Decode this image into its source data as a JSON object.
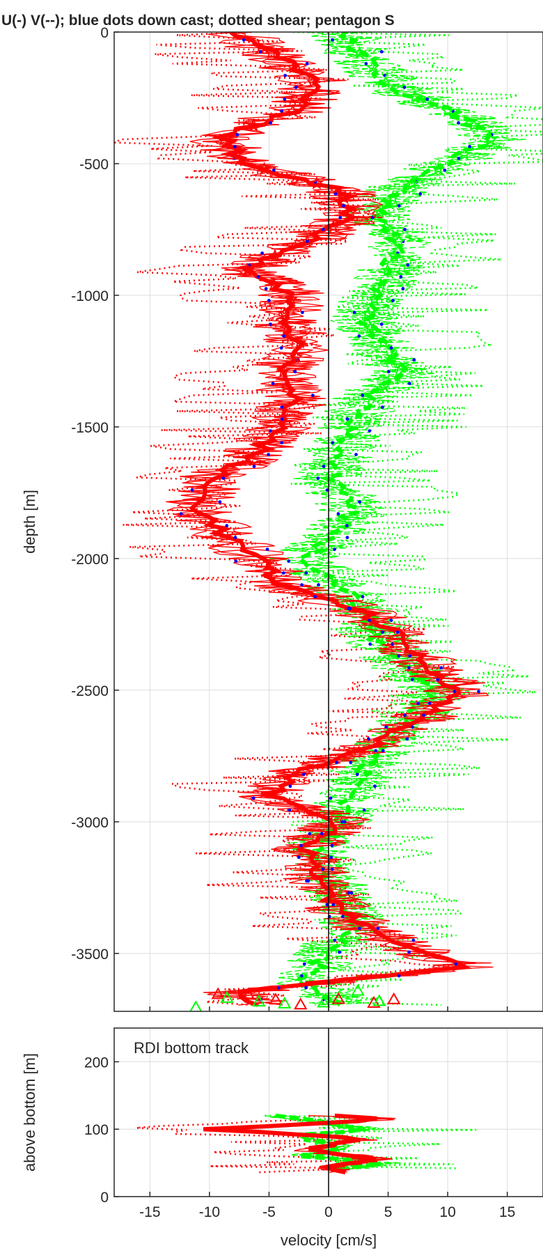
{
  "title": "U(-) V(--); blue dots down cast; dotted shear; pentagon S",
  "colors": {
    "u": "#ff0000",
    "v": "#00ff00",
    "dots": "#0000ff",
    "axis": "#262626",
    "grid": "#dcdcdc"
  },
  "chart_data": [
    {
      "type": "line",
      "panel": "upper",
      "xlabel": "",
      "ylabel": "depth [m]",
      "xlim": [
        -18,
        18
      ],
      "ylim": [
        -3720,
        0
      ],
      "yticks": [
        0,
        -500,
        -1000,
        -1500,
        -2000,
        -2500,
        -3000,
        -3500
      ],
      "ytick_labels": [
        "0",
        "-500",
        "-1000",
        "-1500",
        "-2000",
        "-2500",
        "-3000",
        "-3500"
      ],
      "xticks": [
        -15,
        -10,
        -5,
        0,
        5,
        10,
        15
      ],
      "grid": true,
      "series_style": {
        "u": {
          "color": "red",
          "style": "solid"
        },
        "v": {
          "color": "green",
          "style": "dashed"
        },
        "down_cast_dots": {
          "color": "blue",
          "marker": "dot"
        },
        "shear": {
          "style": "dotted"
        },
        "pentagon_markers": {
          "marker": "pentagram"
        }
      },
      "u_profile": [
        {
          "depth": 0,
          "value": -8
        },
        {
          "depth": -100,
          "value": -4
        },
        {
          "depth": -200,
          "value": -1
        },
        {
          "depth": -300,
          "value": -3
        },
        {
          "depth": -400,
          "value": -9
        },
        {
          "depth": -500,
          "value": -7
        },
        {
          "depth": -600,
          "value": 1
        },
        {
          "depth": -700,
          "value": 2
        },
        {
          "depth": -800,
          "value": -2
        },
        {
          "depth": -900,
          "value": -7
        },
        {
          "depth": -1000,
          "value": -3
        },
        {
          "depth": -1100,
          "value": -4
        },
        {
          "depth": -1200,
          "value": -2
        },
        {
          "depth": -1300,
          "value": -4
        },
        {
          "depth": -1400,
          "value": -3
        },
        {
          "depth": -1500,
          "value": -4
        },
        {
          "depth": -1600,
          "value": -6
        },
        {
          "depth": -1700,
          "value": -10
        },
        {
          "depth": -1800,
          "value": -11
        },
        {
          "depth": -1900,
          "value": -9
        },
        {
          "depth": -2000,
          "value": -6
        },
        {
          "depth": -2100,
          "value": -4
        },
        {
          "depth": -2200,
          "value": 3
        },
        {
          "depth": -2300,
          "value": 6
        },
        {
          "depth": -2400,
          "value": 8
        },
        {
          "depth": -2500,
          "value": 11
        },
        {
          "depth": -2600,
          "value": 8
        },
        {
          "depth": -2700,
          "value": 4
        },
        {
          "depth": -2800,
          "value": -2
        },
        {
          "depth": -2900,
          "value": -5
        },
        {
          "depth": -3000,
          "value": 1
        },
        {
          "depth": -3100,
          "value": -2
        },
        {
          "depth": -3200,
          "value": -1
        },
        {
          "depth": -3300,
          "value": 0
        },
        {
          "depth": -3400,
          "value": 3
        },
        {
          "depth": -3500,
          "value": 8
        },
        {
          "depth": -3550,
          "value": 12
        },
        {
          "depth": -3600,
          "value": 2
        },
        {
          "depth": -3650,
          "value": -8
        },
        {
          "depth": -3700,
          "value": -5
        }
      ],
      "v_profile": [
        {
          "depth": 0,
          "value": 1
        },
        {
          "depth": -100,
          "value": 3
        },
        {
          "depth": -200,
          "value": 5
        },
        {
          "depth": -300,
          "value": 10
        },
        {
          "depth": -400,
          "value": 14
        },
        {
          "depth": -500,
          "value": 10
        },
        {
          "depth": -600,
          "value": 6
        },
        {
          "depth": -700,
          "value": 4
        },
        {
          "depth": -800,
          "value": 6
        },
        {
          "depth": -900,
          "value": 5
        },
        {
          "depth": -1000,
          "value": 4
        },
        {
          "depth": -1100,
          "value": 3
        },
        {
          "depth": -1200,
          "value": 5
        },
        {
          "depth": -1300,
          "value": 6
        },
        {
          "depth": -1400,
          "value": 3
        },
        {
          "depth": -1500,
          "value": 2
        },
        {
          "depth": -1600,
          "value": 1
        },
        {
          "depth": -1700,
          "value": 0
        },
        {
          "depth": -1800,
          "value": 2
        },
        {
          "depth": -1900,
          "value": 1
        },
        {
          "depth": -2000,
          "value": -2
        },
        {
          "depth": -2100,
          "value": 1
        },
        {
          "depth": -2200,
          "value": 3
        },
        {
          "depth": -2300,
          "value": 4
        },
        {
          "depth": -2400,
          "value": 6
        },
        {
          "depth": -2500,
          "value": 9
        },
        {
          "depth": -2600,
          "value": 7
        },
        {
          "depth": -2700,
          "value": 5
        },
        {
          "depth": -2800,
          "value": 3
        },
        {
          "depth": -2900,
          "value": 2
        },
        {
          "depth": -3000,
          "value": 1
        },
        {
          "depth": -3100,
          "value": -1
        },
        {
          "depth": -3200,
          "value": 0
        },
        {
          "depth": -3300,
          "value": 1
        },
        {
          "depth": -3400,
          "value": 2
        },
        {
          "depth": -3500,
          "value": 0
        },
        {
          "depth": -3600,
          "value": -2
        },
        {
          "depth": -3700,
          "value": 1
        }
      ]
    },
    {
      "type": "line",
      "panel": "lower",
      "xlabel": "velocity [cm/s]",
      "ylabel": "above bottom [m]",
      "annotation": "RDI bottom track",
      "xlim": [
        -18,
        18
      ],
      "ylim": [
        0,
        250
      ],
      "yticks": [
        0,
        100,
        200
      ],
      "ytick_labels": [
        "0",
        "100",
        "200"
      ],
      "xticks": [
        -15,
        -10,
        -5,
        0,
        5,
        10,
        15
      ],
      "xtick_labels": [
        "-15",
        "-10",
        "-5",
        "0",
        "5",
        "10",
        "15"
      ],
      "grid": true,
      "u_profile": [
        {
          "height": 120,
          "value": 0
        },
        {
          "height": 115,
          "value": 5
        },
        {
          "height": 110,
          "value": 0
        },
        {
          "height": 100,
          "value": -10
        },
        {
          "height": 95,
          "value": -5
        },
        {
          "height": 85,
          "value": 3
        },
        {
          "height": 70,
          "value": -2
        },
        {
          "height": 55,
          "value": 4
        },
        {
          "height": 45,
          "value": 0
        },
        {
          "height": 35,
          "value": 2
        }
      ],
      "v_profile": [
        {
          "height": 120,
          "value": -5
        },
        {
          "height": 110,
          "value": 0
        },
        {
          "height": 100,
          "value": 3
        },
        {
          "height": 90,
          "value": -3
        },
        {
          "height": 75,
          "value": 1
        },
        {
          "height": 60,
          "value": -2
        },
        {
          "height": 50,
          "value": 5
        },
        {
          "height": 40,
          "value": 1
        }
      ]
    }
  ]
}
